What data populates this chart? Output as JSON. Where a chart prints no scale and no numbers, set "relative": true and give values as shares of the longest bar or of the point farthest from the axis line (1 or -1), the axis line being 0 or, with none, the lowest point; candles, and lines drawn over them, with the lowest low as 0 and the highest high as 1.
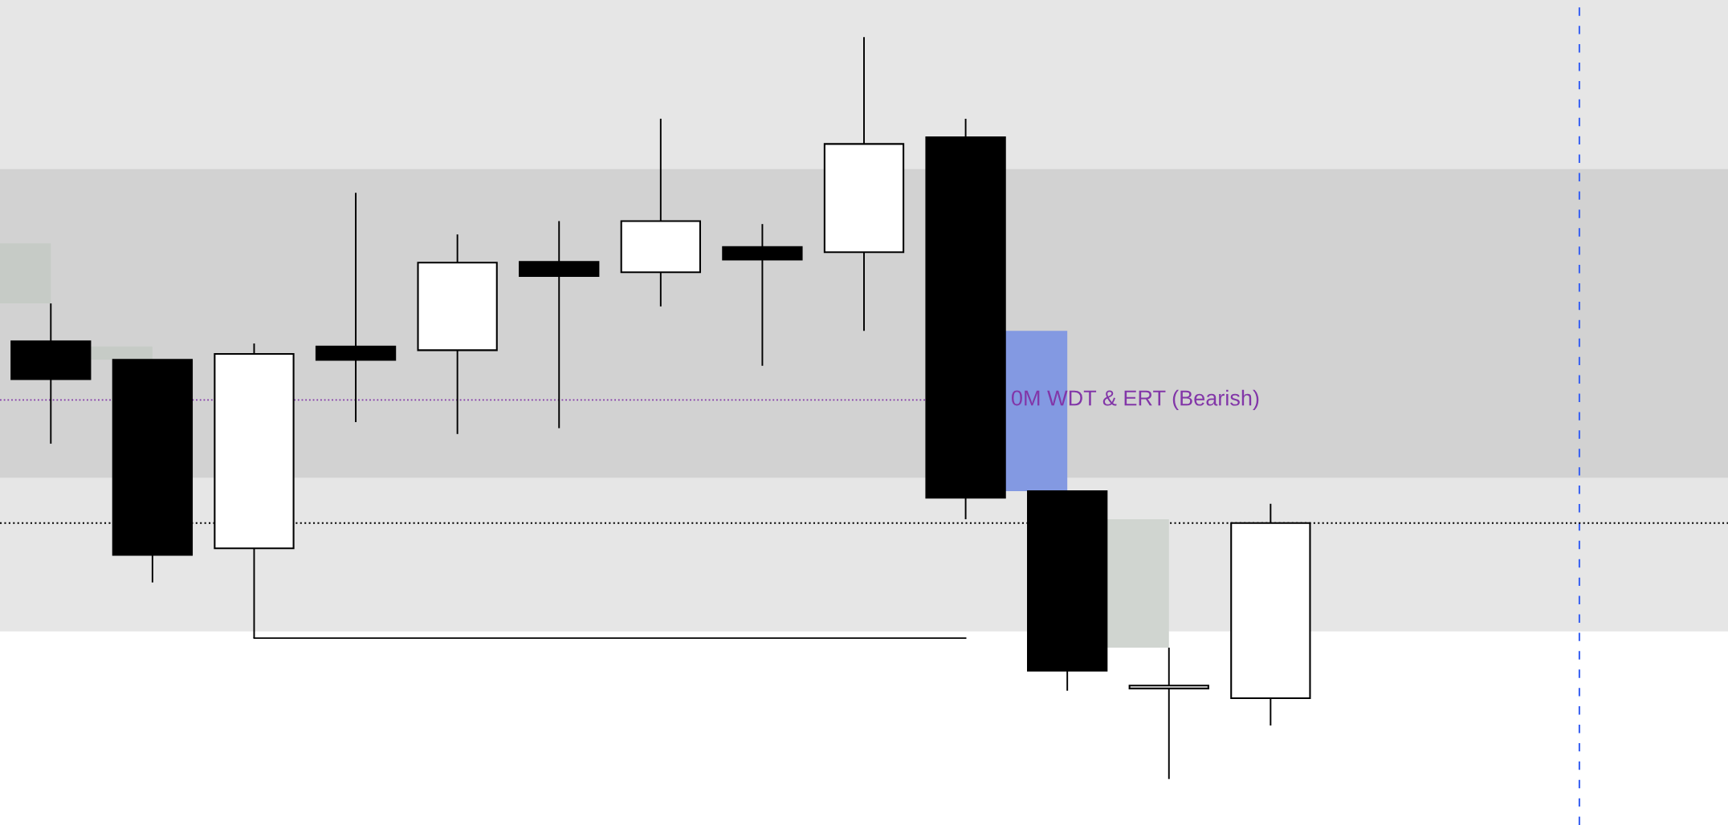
{
  "chart_data": {
    "type": "candlestick",
    "relative": true,
    "categories": [
      null,
      null,
      null,
      null,
      null,
      null,
      null,
      null,
      null,
      null,
      null,
      null,
      null,
      null,
      null,
      null,
      null
    ],
    "ohlc": [
      [
        0.59,
        0.641,
        0.452,
        0.539
      ],
      [
        0.565,
        0.565,
        0.265,
        0.302
      ],
      [
        0.311,
        0.587,
        0.19,
        0.573
      ],
      [
        0.583,
        0.79,
        0.481,
        0.565
      ],
      [
        0.578,
        0.734,
        0.465,
        0.696
      ],
      [
        0.697,
        0.752,
        0.473,
        0.678
      ],
      [
        0.683,
        0.89,
        0.637,
        0.752
      ],
      [
        0.717,
        0.748,
        0.557,
        0.7
      ],
      [
        0.71,
        1.0,
        0.604,
        0.856
      ],
      [
        0.865,
        0.89,
        0.35,
        0.379
      ],
      [
        0.388,
        0.388,
        0.119,
        0.146
      ],
      [
        0.122,
        0.177,
        0.0,
        0.126
      ],
      [
        0.109,
        0.371,
        0.072,
        0.345
      ],
      null,
      null,
      null,
      null
    ],
    "colors": [
      "#000000",
      "#000000",
      "#ffffff",
      "#000000",
      "#ffffff",
      "#000000",
      "#ffffff",
      "#000000",
      "#ffffff",
      "#000000",
      "#000000",
      "#ffffff",
      "#ffffff",
      null,
      null,
      null,
      null
    ],
    "series": [
      {
        "type": "bar",
        "base": [
          0.641,
          0.565,
          null,
          null,
          null,
          null,
          null,
          null,
          null,
          null,
          0.388,
          0.177,
          null,
          null,
          null,
          null,
          null
        ],
        "values": [
          0.081,
          0.018,
          null,
          null,
          null,
          null,
          null,
          null,
          null,
          null,
          0.216,
          0.173,
          null,
          null,
          null,
          null,
          null
        ],
        "colors": [
          "#c6cbc6",
          "#c6cbc6",
          null,
          null,
          null,
          null,
          null,
          null,
          null,
          null,
          "#8399e2",
          "#d0d5d0",
          null,
          null,
          null,
          null,
          null
        ]
      },
      {
        "type": "line",
        "color": "#000000",
        "values": [
          null,
          null,
          0.19,
          0.19,
          0.19,
          0.19,
          0.19,
          0.19,
          0.19,
          0.19,
          null,
          null,
          null,
          null,
          null,
          null,
          null
        ]
      }
    ],
    "bands": [
      {
        "axis": "y",
        "from": 0.406,
        "to": 1.05,
        "color": "#828282"
      },
      {
        "axis": "y",
        "from": 0.199,
        "to": 0.822,
        "color": "#828282"
      }
    ],
    "ref_lines": [
      {
        "axis": "y",
        "value": 0.345,
        "color": "#000000",
        "line_style": "dotted"
      },
      {
        "axis": "y",
        "value": 0.511,
        "label": "0M WDT & ERT (Bearish)",
        "color": "#8236a8",
        "line_style": "dotted"
      }
    ]
  }
}
